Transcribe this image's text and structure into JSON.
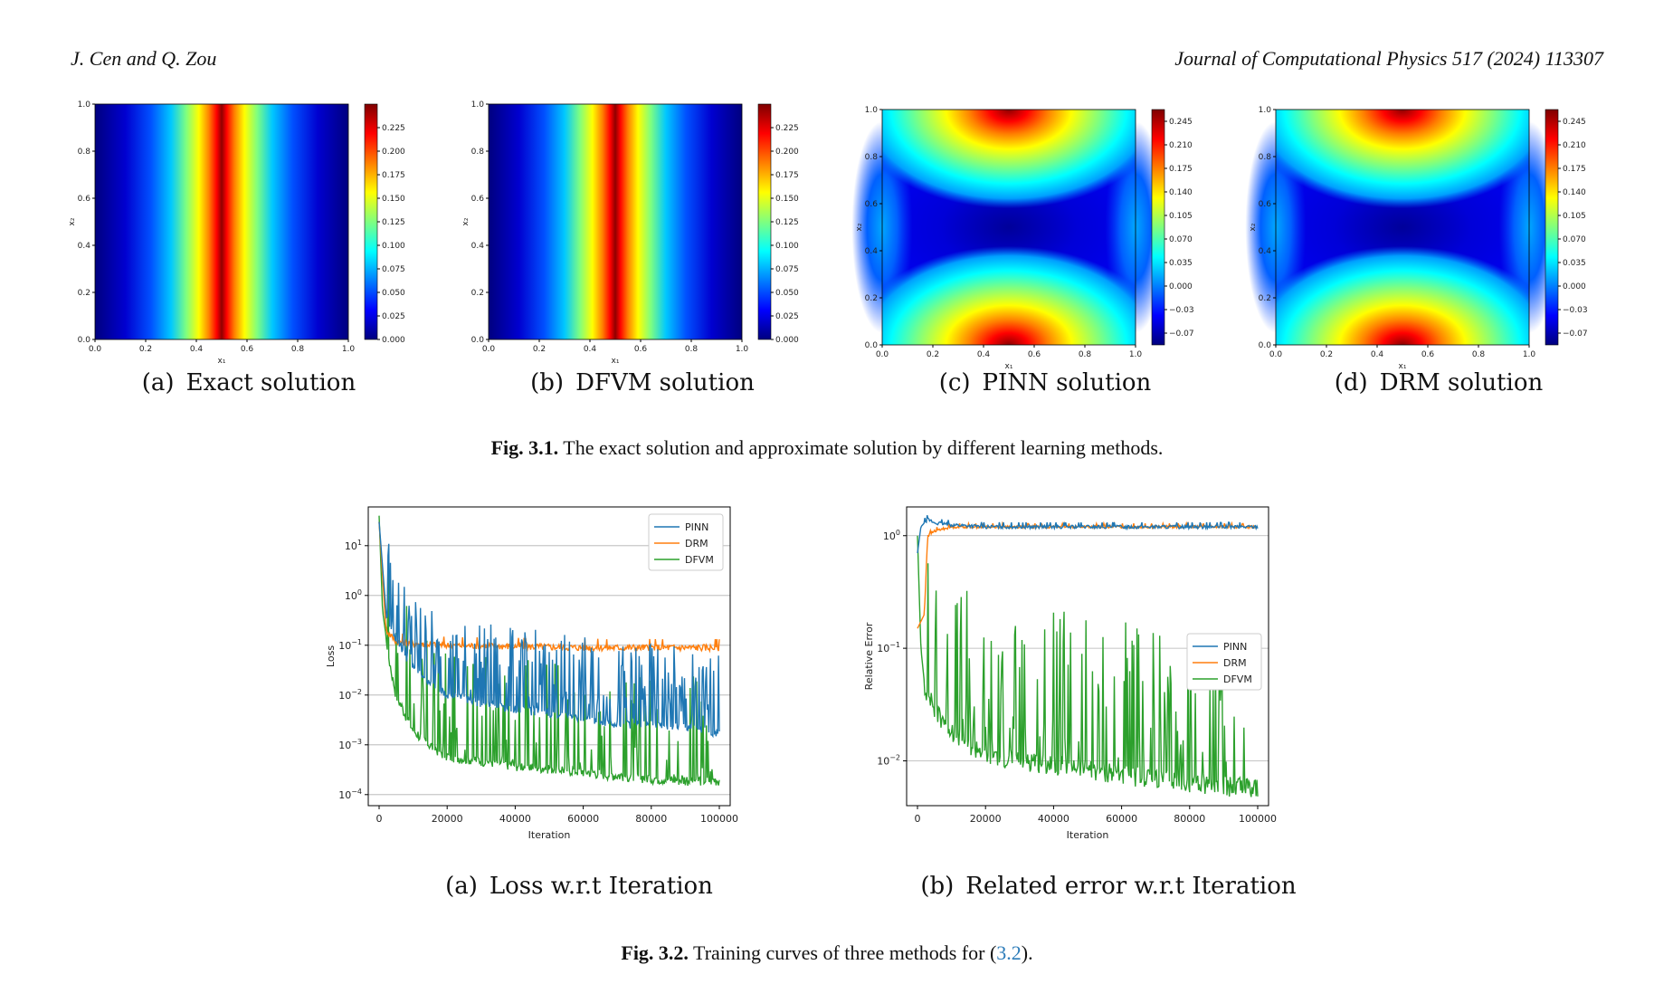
{
  "header": {
    "authors": "J. Cen and Q. Zou",
    "journal": "Journal of Computational Physics 517 (2024) 113307"
  },
  "fig31": {
    "label": "Fig. 3.1.",
    "caption": "The exact solution and approximate solution by different learning methods.",
    "xlabel": "x₁",
    "ylabel": "x₂",
    "axis_ticks": [
      "0.0",
      "0.2",
      "0.4",
      "0.6",
      "0.8",
      "1.0"
    ],
    "panels": [
      {
        "caption": "(a) Exact solution",
        "kind": "vertical-band",
        "colorbar_ticks": [
          "0.000",
          "0.025",
          "0.050",
          "0.075",
          "0.100",
          "0.125",
          "0.150",
          "0.175",
          "0.200",
          "0.225"
        ]
      },
      {
        "caption": "(b) DFVM solution",
        "kind": "vertical-band",
        "colorbar_ticks": [
          "0.000",
          "0.025",
          "0.050",
          "0.075",
          "0.100",
          "0.125",
          "0.150",
          "0.175",
          "0.200",
          "0.225"
        ]
      },
      {
        "caption": "(c) PINN solution",
        "kind": "saddle",
        "colorbar_ticks": [
          "−0.070",
          "−0.035",
          "0.000",
          "0.035",
          "0.070",
          "0.105",
          "0.140",
          "0.175",
          "0.210",
          "0.245"
        ]
      },
      {
        "caption": "(d) DRM solution",
        "kind": "saddle",
        "colorbar_ticks": [
          "−0.070",
          "−0.035",
          "0.000",
          "0.035",
          "0.070",
          "0.105",
          "0.140",
          "0.175",
          "0.210",
          "0.245"
        ]
      }
    ]
  },
  "fig32": {
    "label": "Fig. 3.2.",
    "caption_pre": "Training curves of three methods for (",
    "caption_ref": "3.2",
    "caption_post": ").",
    "colors": {
      "PINN": "#1f77b4",
      "DRM": "#ff7f0e",
      "DFVM": "#2ca02c"
    }
  },
  "chart_data": [
    {
      "type": "line",
      "caption": "(a) Loss w.r.t Iteration",
      "xlabel": "Iteration",
      "ylabel": "Loss",
      "xlim": [
        0,
        100000
      ],
      "yscale": "log",
      "ylim": [
        6e-05,
        60
      ],
      "x_ticks": [
        "0",
        "20000",
        "40000",
        "60000",
        "80000",
        "100000"
      ],
      "y_ticks": [
        {
          "v": 10,
          "e": "1"
        },
        {
          "v": 1,
          "e": "0"
        },
        {
          "v": 0.1,
          "e": "−1"
        },
        {
          "v": 0.01,
          "e": "−2"
        },
        {
          "v": 0.001,
          "e": "−3"
        },
        {
          "v": 0.0001,
          "e": "−4"
        }
      ],
      "grid": "horizontal",
      "legend": "top-right",
      "series": [
        {
          "name": "PINN",
          "x": [
            0,
            2000,
            5000,
            10000,
            15000,
            20000,
            30000,
            40000,
            50000,
            60000,
            70000,
            80000,
            90000,
            100000
          ],
          "y": [
            30,
            0.5,
            0.15,
            0.04,
            0.02,
            0.012,
            0.008,
            0.006,
            0.005,
            0.004,
            0.003,
            0.003,
            0.0025,
            0.002
          ]
        },
        {
          "name": "DRM",
          "x": [
            0,
            2000,
            5000,
            10000,
            20000,
            40000,
            60000,
            80000,
            100000
          ],
          "y": [
            30,
            0.2,
            0.12,
            0.11,
            0.1,
            0.095,
            0.09,
            0.09,
            0.09
          ]
        },
        {
          "name": "DFVM",
          "x": [
            0,
            1000,
            3000,
            5000,
            10000,
            15000,
            20000,
            30000,
            40000,
            50000,
            60000,
            70000,
            80000,
            90000,
            100000
          ],
          "y": [
            40,
            0.5,
            0.05,
            0.01,
            0.002,
            0.001,
            0.0006,
            0.0005,
            0.0004,
            0.00035,
            0.0003,
            0.00025,
            0.00022,
            0.0002,
            0.0002
          ]
        }
      ]
    },
    {
      "type": "line",
      "caption": "(b) Related error w.r.t Iteration",
      "xlabel": "Iteration",
      "ylabel": "Relative Error",
      "xlim": [
        0,
        100000
      ],
      "yscale": "log",
      "ylim": [
        0.004,
        1.8
      ],
      "x_ticks": [
        "0",
        "20000",
        "40000",
        "60000",
        "80000",
        "100000"
      ],
      "y_ticks": [
        {
          "v": 1,
          "e": "0"
        },
        {
          "v": 0.1,
          "e": "−1"
        },
        {
          "v": 0.01,
          "e": "−2"
        }
      ],
      "grid": "horizontal",
      "legend": "center-right",
      "series": [
        {
          "name": "PINN",
          "x": [
            0,
            1000,
            3000,
            5000,
            10000,
            20000,
            40000,
            60000,
            80000,
            100000
          ],
          "y": [
            0.7,
            1.2,
            1.4,
            1.3,
            1.25,
            1.2,
            1.2,
            1.2,
            1.2,
            1.2
          ]
        },
        {
          "name": "DRM",
          "x": [
            0,
            2000,
            3000,
            5000,
            10000,
            20000,
            40000,
            60000,
            80000,
            100000
          ],
          "y": [
            0.15,
            0.2,
            1.0,
            1.1,
            1.2,
            1.2,
            1.2,
            1.2,
            1.2,
            1.2
          ]
        },
        {
          "name": "DFVM",
          "x": [
            0,
            1000,
            2000,
            5000,
            10000,
            15000,
            20000,
            30000,
            40000,
            50000,
            60000,
            70000,
            80000,
            90000,
            100000
          ],
          "y": [
            1.0,
            0.1,
            0.05,
            0.03,
            0.02,
            0.015,
            0.012,
            0.011,
            0.01,
            0.009,
            0.008,
            0.0075,
            0.007,
            0.0065,
            0.006
          ]
        }
      ]
    }
  ]
}
